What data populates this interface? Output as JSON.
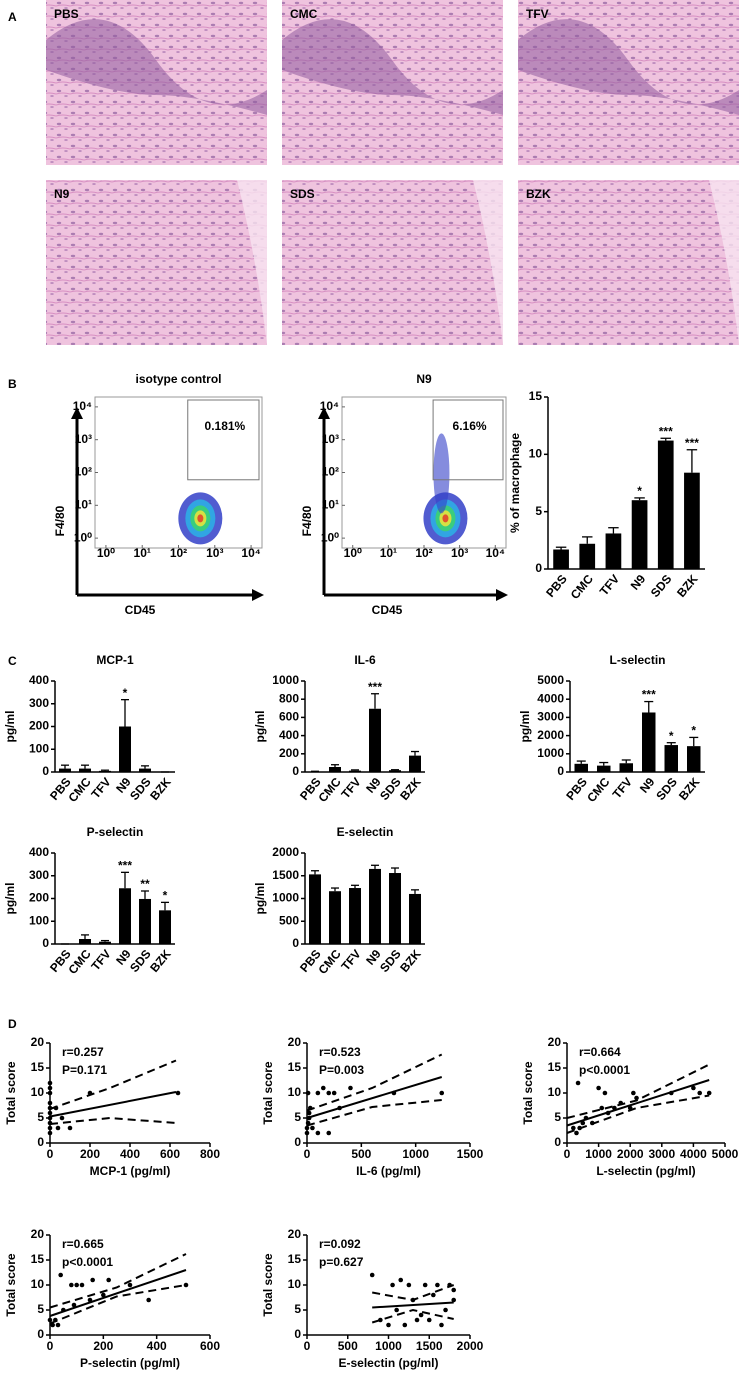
{
  "panel_labels": [
    "A",
    "B",
    "C",
    "D"
  ],
  "histology": {
    "labels": [
      "PBS",
      "CMC",
      "TFV",
      "N9",
      "SDS",
      "BZK"
    ]
  },
  "chart_data": [
    {
      "type": "flow",
      "title": "isotype control",
      "xlabel": "CD45",
      "ylabel": "F4/80",
      "gate_label": "0.181%",
      "log": true,
      "xlim": [
        0.5,
        20000
      ],
      "ylim": [
        0.5,
        20000
      ],
      "xticks": [
        {
          "value": 1,
          "label": "10⁰"
        },
        {
          "value": 10,
          "label": "10¹"
        },
        {
          "value": 100,
          "label": "10²"
        },
        {
          "value": 1000,
          "label": "10³"
        },
        {
          "value": 10000,
          "label": "10⁴"
        }
      ],
      "yticks": [
        {
          "value": 1,
          "label": "10⁰"
        },
        {
          "value": 10,
          "label": "10¹"
        },
        {
          "value": 100,
          "label": "10²"
        },
        {
          "value": 1000,
          "label": "10³"
        },
        {
          "value": 10000,
          "label": "10⁴"
        }
      ]
    },
    {
      "type": "flow",
      "title": "N9",
      "xlabel": "CD45",
      "ylabel": "F4/80",
      "gate_label": "6.16%",
      "log": true,
      "xlim": [
        0.5,
        20000
      ],
      "ylim": [
        0.5,
        20000
      ],
      "xticks": [
        {
          "value": 1,
          "label": "10⁰"
        },
        {
          "value": 10,
          "label": "10¹"
        },
        {
          "value": 100,
          "label": "10²"
        },
        {
          "value": 1000,
          "label": "10³"
        },
        {
          "value": 10000,
          "label": "10⁴"
        }
      ],
      "yticks": [
        {
          "value": 1,
          "label": "10⁰"
        },
        {
          "value": 10,
          "label": "10¹"
        },
        {
          "value": 100,
          "label": "10²"
        },
        {
          "value": 1000,
          "label": "10³"
        },
        {
          "value": 10000,
          "label": "10⁴"
        }
      ]
    },
    {
      "type": "bar",
      "ylabel": "% of macrophage",
      "color": "#000000",
      "categories": [
        "PBS",
        "CMC",
        "TFV",
        "N9",
        "SDS",
        "BZK"
      ],
      "values": [
        1.7,
        2.2,
        3.1,
        6.0,
        11.2,
        8.4
      ],
      "errors": [
        0.2,
        0.6,
        0.5,
        0.2,
        0.2,
        2.0
      ],
      "significance": [
        null,
        null,
        null,
        "*",
        "***",
        "***"
      ],
      "ylim": [
        0,
        15
      ],
      "yticks": [
        0,
        5,
        10,
        15
      ]
    },
    {
      "type": "bar",
      "title": "MCP-1",
      "ylabel": "pg/ml",
      "color": "#000000",
      "categories": [
        "PBS",
        "CMC",
        "TFV",
        "N9",
        "SDS",
        "BZK"
      ],
      "values": [
        15,
        15,
        5,
        200,
        15,
        0
      ],
      "errors": [
        15,
        15,
        3,
        118,
        12,
        0
      ],
      "significance": [
        null,
        null,
        null,
        "*",
        null,
        null
      ],
      "ylim": [
        0,
        400
      ],
      "yticks": [
        0,
        100,
        200,
        300,
        400
      ]
    },
    {
      "type": "bar",
      "title": "IL-6",
      "ylabel": "pg/ml",
      "color": "#000000",
      "categories": [
        "PBS",
        "CMC",
        "TFV",
        "N9",
        "SDS",
        "BZK"
      ],
      "values": [
        5,
        55,
        15,
        695,
        20,
        180
      ],
      "errors": [
        3,
        25,
        8,
        165,
        5,
        45
      ],
      "significance": [
        null,
        null,
        null,
        "***",
        null,
        null
      ],
      "ylim": [
        0,
        1000
      ],
      "yticks": [
        0,
        200,
        400,
        600,
        800,
        1000
      ]
    },
    {
      "type": "bar",
      "title": "L-selectin",
      "ylabel": "pg/ml",
      "color": "#000000",
      "categories": [
        "PBS",
        "CMC",
        "TFV",
        "N9",
        "SDS",
        "BZK"
      ],
      "values": [
        450,
        350,
        480,
        3270,
        1480,
        1420
      ],
      "errors": [
        150,
        170,
        180,
        600,
        130,
        480
      ],
      "significance": [
        null,
        null,
        null,
        "***",
        "*",
        "*"
      ],
      "ylim": [
        0,
        5000
      ],
      "yticks": [
        0,
        1000,
        2000,
        3000,
        4000,
        5000
      ]
    },
    {
      "type": "bar",
      "title": "P-selectin",
      "ylabel": "pg/ml",
      "color": "#000000",
      "categories": [
        "PBS",
        "CMC",
        "TFV",
        "N9",
        "SDS",
        "BZK"
      ],
      "values": [
        0,
        22,
        10,
        245,
        198,
        148
      ],
      "errors": [
        0,
        18,
        5,
        70,
        35,
        35
      ],
      "significance": [
        null,
        null,
        null,
        "***",
        "**",
        "*"
      ],
      "ylim": [
        0,
        400
      ],
      "yticks": [
        0,
        100,
        200,
        300,
        400
      ]
    },
    {
      "type": "bar",
      "title": "E-selectin",
      "ylabel": "pg/ml",
      "color": "#000000",
      "categories": [
        "PBS",
        "CMC",
        "TFV",
        "N9",
        "SDS",
        "BZK"
      ],
      "values": [
        1530,
        1160,
        1230,
        1650,
        1560,
        1100
      ],
      "errors": [
        80,
        70,
        60,
        80,
        110,
        90
      ],
      "ylim": [
        0,
        2000
      ],
      "yticks": [
        0,
        500,
        1000,
        1500,
        2000
      ]
    },
    {
      "type": "scatter",
      "xlabel": "MCP-1 (pg/ml)",
      "ylabel": "Total score",
      "annotations": [
        "r=0.257",
        "P=0.171"
      ],
      "x": [
        0,
        0,
        0,
        0,
        0,
        0,
        0,
        0,
        0,
        0,
        30,
        40,
        60,
        100,
        200,
        640
      ],
      "y": [
        12,
        11,
        10,
        8,
        7,
        6,
        5,
        4,
        3,
        2,
        7,
        3,
        5,
        3,
        10,
        10
      ],
      "fit": {
        "x": [
          0,
          630
        ],
        "y": [
          5.3,
          10.2
        ]
      },
      "ci_upper": {
        "x": [
          0,
          300,
          630
        ],
        "y": [
          6.8,
          11,
          16.5
        ]
      },
      "ci_lower": {
        "x": [
          0,
          300,
          630
        ],
        "y": [
          3.8,
          5,
          4
        ]
      },
      "xlim": [
        0,
        800
      ],
      "xticks": [
        0,
        200,
        400,
        600,
        800
      ],
      "ylim": [
        0,
        20
      ],
      "yticks": [
        0,
        5,
        10,
        15,
        20
      ]
    },
    {
      "type": "scatter",
      "xlabel": "IL-6 (pg/ml)",
      "ylabel": "Total score",
      "annotations": [
        "r=0.523",
        "P=0.003"
      ],
      "x": [
        0,
        0,
        10,
        20,
        20,
        30,
        10,
        50,
        100,
        100,
        150,
        200,
        200,
        250,
        300,
        400,
        800,
        1240
      ],
      "y": [
        2,
        3,
        4,
        5,
        6,
        7,
        10,
        3,
        2,
        10,
        11,
        10,
        2,
        10,
        7,
        11,
        10,
        10
      ],
      "fit": {
        "x": [
          0,
          1240
        ],
        "y": [
          5,
          13.2
        ]
      },
      "ci_upper": {
        "x": [
          0,
          600,
          1240
        ],
        "y": [
          6.5,
          11,
          17.7
        ]
      },
      "ci_lower": {
        "x": [
          0,
          600,
          1240
        ],
        "y": [
          3.5,
          7.2,
          8.6
        ]
      },
      "xlim": [
        0,
        1500
      ],
      "xticks": [
        0,
        500,
        1000,
        1500
      ],
      "ylim": [
        0,
        20
      ],
      "yticks": [
        0,
        5,
        10,
        15,
        20
      ]
    },
    {
      "type": "scatter",
      "xlabel": "L-selectin (pg/ml)",
      "ylabel": "Total score",
      "annotations": [
        "r=0.664",
        "p<0.0001"
      ],
      "x": [
        200,
        300,
        350,
        400,
        500,
        600,
        800,
        1000,
        1100,
        1200,
        1300,
        1500,
        1700,
        2000,
        2100,
        2200,
        3300,
        4000,
        4200,
        4500
      ],
      "y": [
        3,
        2,
        12,
        3,
        4,
        5,
        4,
        11,
        7,
        10,
        6,
        7,
        8,
        7,
        10,
        9,
        10,
        11,
        10,
        10
      ],
      "fit": {
        "x": [
          0,
          4500
        ],
        "y": [
          3.5,
          12.6
        ]
      },
      "ci_upper": {
        "x": [
          0,
          2200,
          4500
        ],
        "y": [
          5,
          8.5,
          15.7
        ]
      },
      "ci_lower": {
        "x": [
          0,
          2200,
          4500
        ],
        "y": [
          2,
          7,
          9.5
        ]
      },
      "xlim": [
        0,
        5000
      ],
      "xticks": [
        0,
        1000,
        2000,
        3000,
        4000,
        5000
      ],
      "ylim": [
        0,
        20
      ],
      "yticks": [
        0,
        5,
        10,
        15,
        20
      ]
    },
    {
      "type": "scatter",
      "xlabel": "P-selectin (pg/ml)",
      "ylabel": "Total score",
      "annotations": [
        "r=0.665",
        "p<0.0001"
      ],
      "x": [
        0,
        10,
        20,
        30,
        40,
        50,
        80,
        90,
        100,
        120,
        150,
        160,
        200,
        220,
        300,
        370,
        510
      ],
      "y": [
        3,
        2,
        3,
        2,
        12,
        5,
        10,
        6,
        10,
        10,
        7,
        11,
        8,
        11,
        10,
        7,
        10
      ],
      "fit": {
        "x": [
          0,
          510
        ],
        "y": [
          3.8,
          13
        ]
      },
      "ci_upper": {
        "x": [
          0,
          250,
          510
        ],
        "y": [
          5.5,
          9.5,
          16.2
        ]
      },
      "ci_lower": {
        "x": [
          0,
          250,
          510
        ],
        "y": [
          2.3,
          7.7,
          10
        ]
      },
      "xlim": [
        0,
        600
      ],
      "xticks": [
        0,
        200,
        400,
        600
      ],
      "ylim": [
        0,
        20
      ],
      "yticks": [
        0,
        5,
        10,
        15,
        20
      ]
    },
    {
      "type": "scatter",
      "xlabel": "E-selectin (pg/ml)",
      "ylabel": "Total score",
      "annotations": [
        "r=0.092",
        "p=0.627"
      ],
      "x": [
        800,
        900,
        1000,
        1050,
        1100,
        1150,
        1200,
        1250,
        1300,
        1350,
        1400,
        1450,
        1500,
        1550,
        1600,
        1650,
        1700,
        1750,
        1800,
        1800
      ],
      "y": [
        12,
        3,
        2,
        10,
        5,
        11,
        2,
        10,
        7,
        3,
        4,
        10,
        3,
        8,
        10,
        2,
        5,
        10,
        7,
        9
      ],
      "fit": {
        "x": [
          800,
          1800
        ],
        "y": [
          5.5,
          6.5
        ]
      },
      "ci_upper": {
        "x": [
          800,
          1300,
          1800
        ],
        "y": [
          8.5,
          7,
          10
        ]
      },
      "ci_lower": {
        "x": [
          800,
          1300,
          1800
        ],
        "y": [
          2.5,
          5,
          3.2
        ]
      },
      "xlim": [
        0,
        2000
      ],
      "xticks": [
        0,
        500,
        1000,
        1500,
        2000
      ],
      "ylim": [
        0,
        20
      ],
      "yticks": [
        0,
        5,
        10,
        15,
        20
      ]
    }
  ]
}
